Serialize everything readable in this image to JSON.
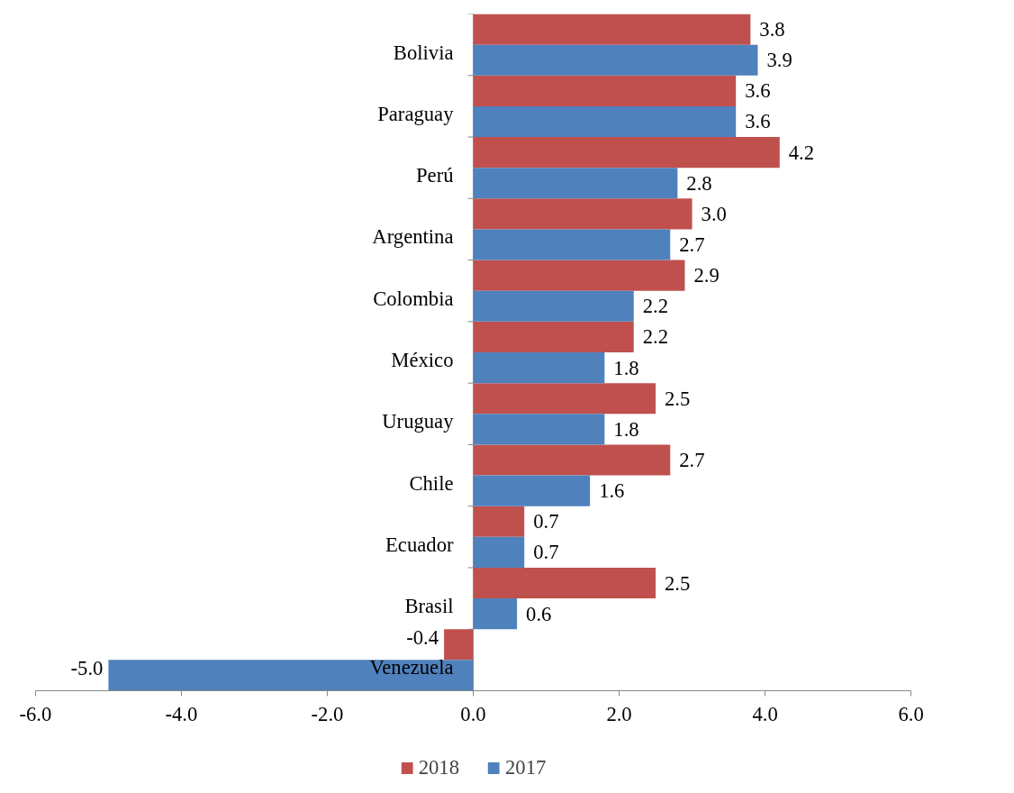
{
  "chart_data": {
    "type": "bar",
    "orientation": "horizontal",
    "categories": [
      "Bolivia",
      "Paraguay",
      "Perú",
      "Argentina",
      "Colombia",
      "México",
      "Uruguay",
      "Chile",
      "Ecuador",
      "Brasil",
      "Venezuela"
    ],
    "series": [
      {
        "name": "2018",
        "color": "#c0504d",
        "values": [
          3.8,
          3.6,
          4.2,
          3.0,
          2.9,
          2.2,
          2.5,
          2.7,
          0.7,
          2.5,
          -0.4
        ],
        "value_labels": [
          "3.8",
          "3.6",
          "4.2",
          "3.0",
          "2.9",
          "2.2",
          "2.5",
          "2.7",
          "0.7",
          "2.5",
          "-0.4"
        ]
      },
      {
        "name": "2017",
        "color": "#4f81bd",
        "values": [
          3.9,
          3.6,
          2.8,
          2.7,
          2.2,
          1.8,
          1.8,
          1.6,
          0.7,
          0.6,
          -5.0
        ],
        "value_labels": [
          "3.9",
          "3.6",
          "2.8",
          "2.7",
          "2.2",
          "1.8",
          "1.8",
          "1.6",
          "0.7",
          "0.6",
          "-5.0"
        ]
      }
    ],
    "xlim": [
      -6,
      6
    ],
    "xticks": [
      {
        "value": -6,
        "label": "-6.0"
      },
      {
        "value": -4,
        "label": "-4.0"
      },
      {
        "value": -2,
        "label": "-2.0"
      },
      {
        "value": 0,
        "label": "0.0"
      },
      {
        "value": 2,
        "label": "2.0"
      },
      {
        "value": 4,
        "label": "4.0"
      },
      {
        "value": 6,
        "label": "6.0"
      }
    ],
    "grid": false,
    "legend": "bottom"
  }
}
